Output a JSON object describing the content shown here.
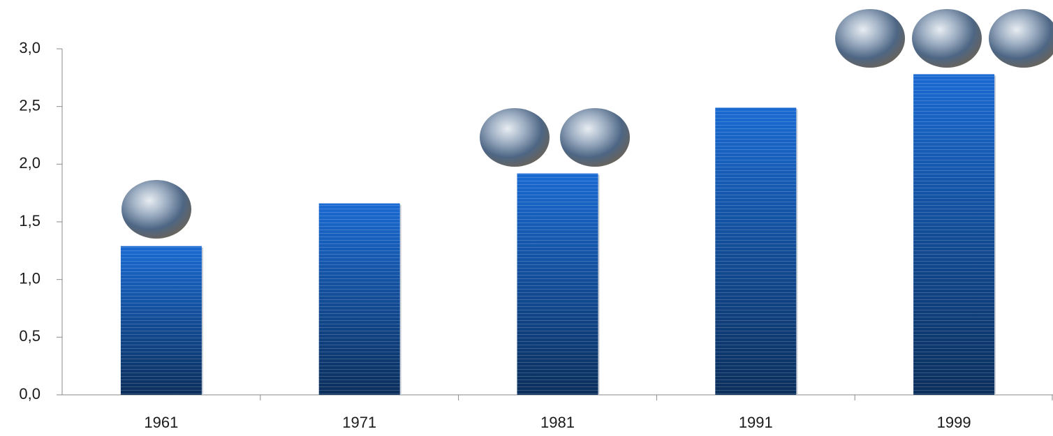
{
  "chart_data": {
    "type": "bar",
    "categories": [
      "1961",
      "1971",
      "1981",
      "1991",
      "1999"
    ],
    "values": [
      1.29,
      1.66,
      1.92,
      2.49,
      2.78
    ],
    "color": "#1a6ad2",
    "ylim": [
      0,
      3
    ],
    "yticks": [
      {
        "value": 0,
        "label": "0,0"
      },
      {
        "value": 0.5,
        "label": "0,5"
      },
      {
        "value": 1,
        "label": "1,0"
      },
      {
        "value": 1.5,
        "label": "1,5"
      },
      {
        "value": 2,
        "label": "2,0"
      },
      {
        "value": 2.5,
        "label": "2,5"
      },
      {
        "value": 3,
        "label": "3,0"
      }
    ],
    "grid": false
  }
}
